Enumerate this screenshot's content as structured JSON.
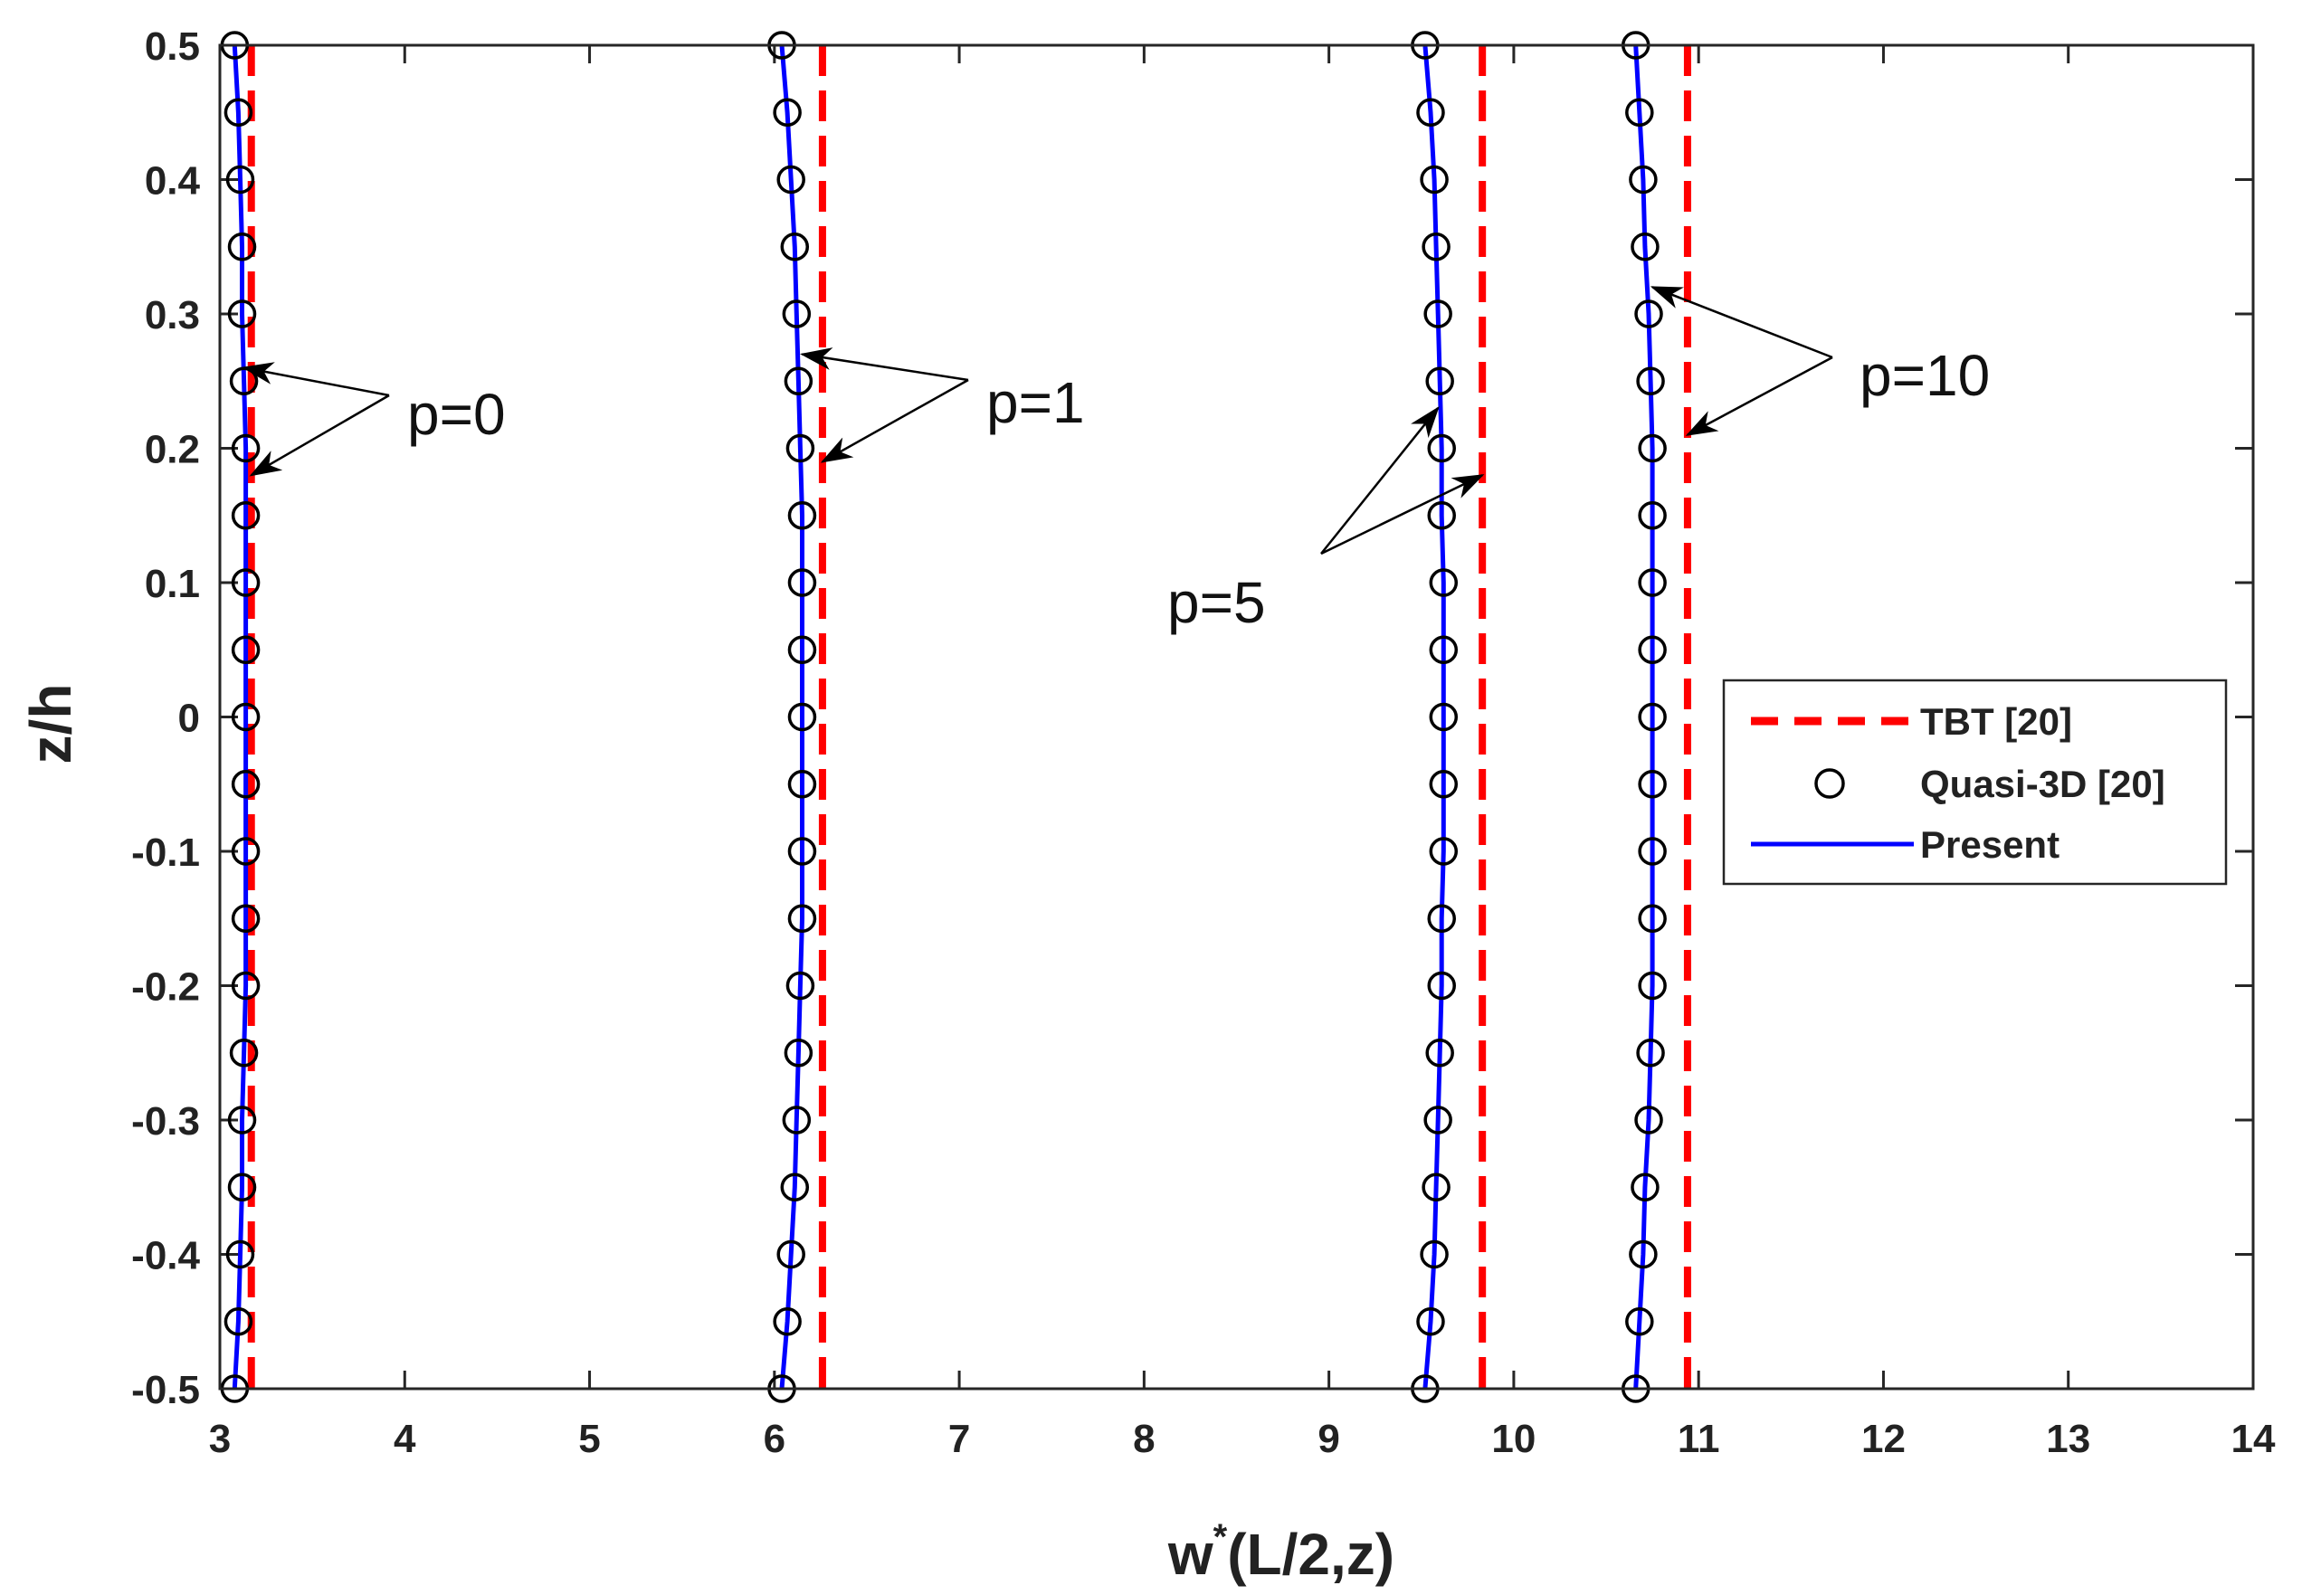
{
  "chart_data": {
    "type": "line",
    "xlabel_main": "w",
    "xlabel_sup": "*",
    "xlabel_rest": "(L/2,z)",
    "ylabel": "z/h",
    "xlim": [
      3,
      14
    ],
    "ylim": [
      -0.5,
      0.5
    ],
    "xticks": [
      3,
      4,
      5,
      6,
      7,
      8,
      9,
      10,
      11,
      12,
      13,
      14
    ],
    "yticks": [
      -0.5,
      -0.4,
      -0.3,
      -0.2,
      -0.1,
      0,
      0.1,
      0.2,
      0.3,
      0.4,
      0.5
    ],
    "z": [
      0.5,
      0.45,
      0.4,
      0.35,
      0.3,
      0.25,
      0.2,
      0.15,
      0.1,
      0.05,
      0,
      -0.05,
      -0.1,
      -0.15,
      -0.2,
      -0.25,
      -0.3,
      -0.35,
      -0.4,
      -0.45,
      -0.5
    ],
    "series": [
      {
        "name": "TBT [20]",
        "p": "p=0",
        "w": 3.17
      },
      {
        "name": "TBT [20]",
        "p": "p=1",
        "w": 6.26
      },
      {
        "name": "TBT [20]",
        "p": "p=5",
        "w": 9.83
      },
      {
        "name": "TBT [20]",
        "p": "p=10",
        "w": 10.94
      },
      {
        "name": "Quasi-3D [20]",
        "p": "p=0",
        "w": [
          3.08,
          3.1,
          3.11,
          3.12,
          3.12,
          3.13,
          3.14,
          3.14,
          3.14,
          3.14,
          3.14,
          3.14,
          3.14,
          3.14,
          3.14,
          3.13,
          3.12,
          3.12,
          3.11,
          3.1,
          3.08
        ]
      },
      {
        "name": "Quasi-3D [20]",
        "p": "p=1",
        "w": [
          6.04,
          6.07,
          6.09,
          6.11,
          6.12,
          6.13,
          6.14,
          6.15,
          6.15,
          6.15,
          6.15,
          6.15,
          6.15,
          6.15,
          6.14,
          6.13,
          6.12,
          6.11,
          6.09,
          6.07,
          6.04
        ]
      },
      {
        "name": "Quasi-3D [20]",
        "p": "p=5",
        "w": [
          9.52,
          9.55,
          9.57,
          9.58,
          9.59,
          9.6,
          9.61,
          9.61,
          9.62,
          9.62,
          9.62,
          9.62,
          9.62,
          9.61,
          9.61,
          9.6,
          9.59,
          9.58,
          9.57,
          9.55,
          9.52
        ]
      },
      {
        "name": "Quasi-3D [20]",
        "p": "p=10",
        "w": [
          10.66,
          10.68,
          10.7,
          10.71,
          10.73,
          10.74,
          10.75,
          10.75,
          10.75,
          10.75,
          10.75,
          10.75,
          10.75,
          10.75,
          10.75,
          10.74,
          10.73,
          10.71,
          10.7,
          10.68,
          10.66
        ]
      },
      {
        "name": "Present",
        "p": "p=0",
        "w": [
          3.08,
          3.1,
          3.11,
          3.12,
          3.12,
          3.13,
          3.14,
          3.14,
          3.14,
          3.14,
          3.14,
          3.14,
          3.14,
          3.14,
          3.14,
          3.13,
          3.12,
          3.12,
          3.11,
          3.1,
          3.08
        ]
      },
      {
        "name": "Present",
        "p": "p=1",
        "w": [
          6.04,
          6.07,
          6.09,
          6.11,
          6.12,
          6.13,
          6.14,
          6.15,
          6.15,
          6.15,
          6.15,
          6.15,
          6.15,
          6.15,
          6.14,
          6.13,
          6.12,
          6.11,
          6.09,
          6.07,
          6.04
        ]
      },
      {
        "name": "Present",
        "p": "p=5",
        "w": [
          9.52,
          9.55,
          9.57,
          9.58,
          9.59,
          9.6,
          9.61,
          9.61,
          9.62,
          9.62,
          9.62,
          9.62,
          9.62,
          9.61,
          9.61,
          9.6,
          9.59,
          9.58,
          9.57,
          9.55,
          9.52
        ]
      },
      {
        "name": "Present",
        "p": "p=10",
        "w": [
          10.66,
          10.68,
          10.7,
          10.71,
          10.73,
          10.74,
          10.75,
          10.75,
          10.75,
          10.75,
          10.75,
          10.75,
          10.75,
          10.75,
          10.75,
          10.74,
          10.73,
          10.71,
          10.7,
          10.68,
          10.66
        ]
      }
    ],
    "legend": {
      "position": "center-right",
      "entries": [
        {
          "label": "TBT [20]",
          "style": "dashed",
          "color": "#ff0000"
        },
        {
          "label": "Quasi-3D [20]",
          "style": "circle",
          "color": "#000000"
        },
        {
          "label": "Present",
          "style": "solid",
          "color": "#0000ff"
        }
      ]
    },
    "annotations": [
      {
        "text": "p=0",
        "points_to": [
          [
            3.13,
            0.26
          ],
          [
            3.17,
            0.18
          ]
        ]
      },
      {
        "text": "p=1",
        "points_to": [
          [
            6.15,
            0.27
          ],
          [
            6.26,
            0.19
          ]
        ]
      },
      {
        "text": "p=5",
        "points_to": [
          [
            9.59,
            0.23
          ],
          [
            9.83,
            0.18
          ]
        ]
      },
      {
        "text": "p=10",
        "points_to": [
          [
            10.75,
            0.32
          ],
          [
            10.94,
            0.21
          ]
        ]
      }
    ],
    "colors": {
      "tbt": "#ff0000",
      "quasi": "#000000",
      "present": "#0000ff",
      "axis": "#262626",
      "grid_tick": "#262626"
    }
  }
}
